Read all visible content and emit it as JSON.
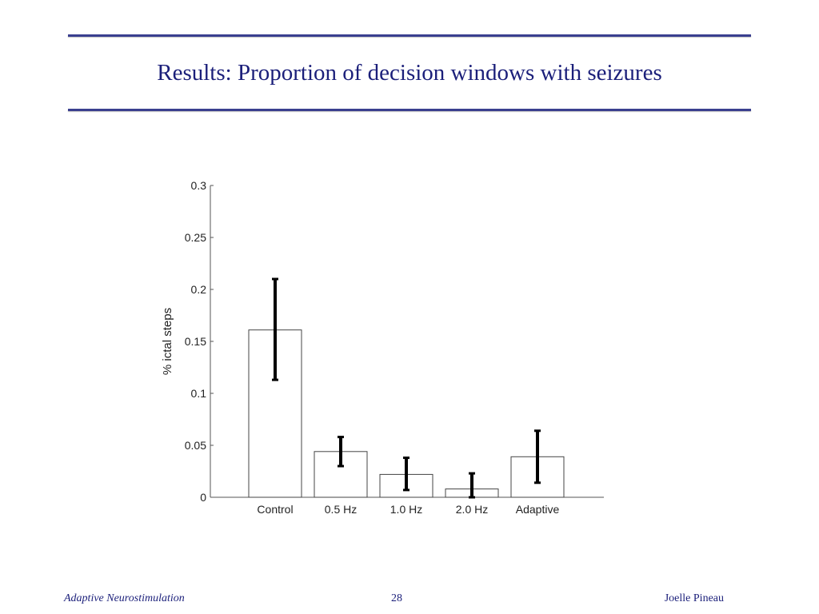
{
  "slide": {
    "title": "Results: Proportion of decision windows with seizures",
    "footer_left": "Adaptive Neurostimulation",
    "page_number": "28",
    "footer_right": "Joelle Pineau"
  },
  "colors": {
    "title": "#1b1f7a",
    "rule": "#3a3f8f",
    "bar_fill": "#ffffff",
    "bar_stroke": "#444444",
    "error_bar": "#000000"
  },
  "chart_data": {
    "type": "bar",
    "categories": [
      "Control",
      "0.5 Hz",
      "1.0 Hz",
      "2.0 Hz",
      "Adaptive"
    ],
    "values": [
      0.161,
      0.044,
      0.022,
      0.008,
      0.039
    ],
    "error_low": [
      0.113,
      0.03,
      0.007,
      0.0,
      0.014
    ],
    "error_high": [
      0.21,
      0.058,
      0.038,
      0.023,
      0.064
    ],
    "ylabel": "% ictal steps",
    "xlabel": "",
    "ylim": [
      0,
      0.3
    ],
    "yticks": [
      0,
      0.05,
      0.1,
      0.15,
      0.2,
      0.25,
      0.3
    ],
    "ytick_labels": [
      "0",
      "0.05",
      "0.1",
      "0.15",
      "0.2",
      "0.25",
      "0.3"
    ],
    "grid": false,
    "legend": "none"
  }
}
